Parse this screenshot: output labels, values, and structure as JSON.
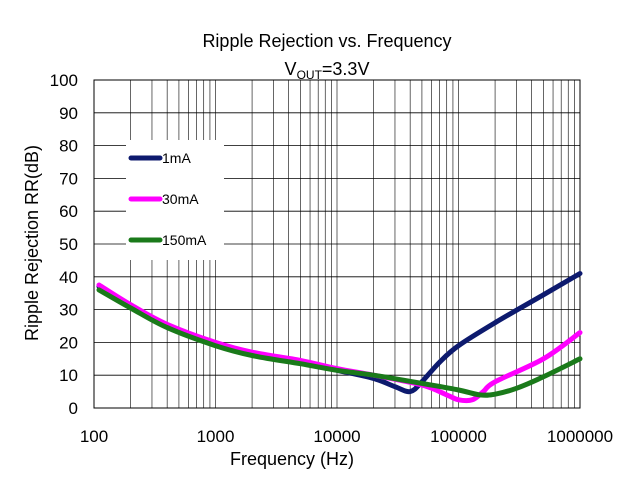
{
  "chart_data": {
    "type": "line",
    "title": "Ripple Rejection vs. Frequency",
    "subtitle": {
      "main": "V",
      "sub": "OUT",
      "suffix": "=3.3V"
    },
    "xlabel": "Frequency (Hz)",
    "ylabel": "Ripple Rejection RR(dB)",
    "x_scale": "log",
    "xlim": [
      100,
      1000000
    ],
    "ylim": [
      0,
      100
    ],
    "grid": true,
    "legend_position": "upper-left",
    "x_ticks": [
      "100",
      "1000",
      "10000",
      "100000",
      "1000000"
    ],
    "y_ticks": [
      "0",
      "10",
      "20",
      "30",
      "40",
      "50",
      "60",
      "70",
      "80",
      "90",
      "100"
    ],
    "series": [
      {
        "name": "1mA",
        "color": "#0d1a6e",
        "points": [
          [
            110,
            37
          ],
          [
            200,
            31
          ],
          [
            400,
            25
          ],
          [
            1000,
            19.5
          ],
          [
            2000,
            16.5
          ],
          [
            5000,
            14
          ],
          [
            10000,
            11.5
          ],
          [
            20000,
            9
          ],
          [
            30000,
            6.5
          ],
          [
            40000,
            5
          ],
          [
            50000,
            8
          ],
          [
            70000,
            14
          ],
          [
            100000,
            19
          ],
          [
            200000,
            26
          ],
          [
            500000,
            34.5
          ],
          [
            1000000,
            41
          ]
        ]
      },
      {
        "name": "30mA",
        "color": "#ff00ff",
        "points": [
          [
            110,
            37.5
          ],
          [
            200,
            31.5
          ],
          [
            400,
            25.5
          ],
          [
            1000,
            20
          ],
          [
            2000,
            17
          ],
          [
            5000,
            14.5
          ],
          [
            10000,
            12
          ],
          [
            20000,
            10
          ],
          [
            50000,
            7
          ],
          [
            80000,
            4
          ],
          [
            100000,
            2.5
          ],
          [
            130000,
            2.5
          ],
          [
            160000,
            5
          ],
          [
            200000,
            8
          ],
          [
            500000,
            15
          ],
          [
            1000000,
            23
          ]
        ]
      },
      {
        "name": "150mA",
        "color": "#1a7a1a",
        "points": [
          [
            110,
            36
          ],
          [
            200,
            30.5
          ],
          [
            400,
            24.5
          ],
          [
            1000,
            19
          ],
          [
            2000,
            16
          ],
          [
            5000,
            13.5
          ],
          [
            10000,
            11.5
          ],
          [
            20000,
            10
          ],
          [
            50000,
            7.5
          ],
          [
            100000,
            5.5
          ],
          [
            150000,
            4
          ],
          [
            200000,
            4.2
          ],
          [
            300000,
            6
          ],
          [
            500000,
            9.5
          ],
          [
            1000000,
            15
          ]
        ]
      }
    ]
  }
}
